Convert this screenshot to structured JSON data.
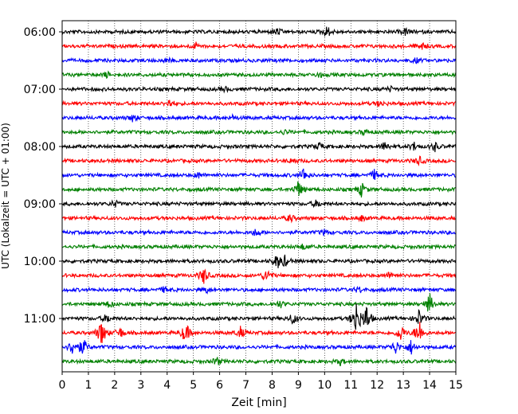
{
  "chart_data": {
    "type": "line",
    "title": "",
    "xlabel": "Zeit  [min]",
    "ylabel": "UTC (Lokalzeit = UTC + 01:00)",
    "xlim": [
      0,
      15
    ],
    "x_ticks": [
      "0",
      "1",
      "2",
      "3",
      "4",
      "5",
      "6",
      "7",
      "8",
      "9",
      "10",
      "11",
      "12",
      "13",
      "14",
      "15"
    ],
    "y_tick_labels": [
      "06:00",
      "07:00",
      "08:00",
      "09:00",
      "10:00",
      "11:00"
    ],
    "grid": "vertical-dotted",
    "trace_colors": [
      "#000000",
      "#ff0000",
      "#0000ff",
      "#008000"
    ],
    "traces": [
      {
        "row": 0,
        "color_index": 0,
        "events": [
          [
            8.2,
            0.5
          ],
          [
            10.1,
            0.8
          ],
          [
            13.1,
            0.5
          ]
        ]
      },
      {
        "row": 1,
        "color_index": 1,
        "events": [
          [
            5.1,
            0.4
          ],
          [
            13.7,
            0.5
          ]
        ]
      },
      {
        "row": 2,
        "color_index": 2,
        "events": [
          [
            4.0,
            0.3
          ],
          [
            13.5,
            0.3
          ]
        ]
      },
      {
        "row": 3,
        "color_index": 3,
        "events": [
          [
            1.7,
            0.4
          ],
          [
            9.8,
            0.3
          ]
        ]
      },
      {
        "row": 4,
        "color_index": 0,
        "events": [
          [
            6.2,
            0.3
          ],
          [
            12.5,
            0.3
          ]
        ]
      },
      {
        "row": 5,
        "color_index": 1,
        "events": [
          [
            4.1,
            0.6
          ],
          [
            12.1,
            0.4
          ]
        ]
      },
      {
        "row": 6,
        "color_index": 2,
        "events": [
          [
            2.7,
            0.5
          ],
          [
            6.5,
            0.3
          ]
        ]
      },
      {
        "row": 7,
        "color_index": 3,
        "events": [
          [
            8.5,
            0.3
          ],
          [
            11.5,
            0.3
          ]
        ]
      },
      {
        "row": 8,
        "color_index": 0,
        "events": [
          [
            9.8,
            0.5
          ],
          [
            12.3,
            0.7
          ],
          [
            13.4,
            0.6
          ],
          [
            14.2,
            0.6
          ]
        ]
      },
      {
        "row": 9,
        "color_index": 1,
        "events": [
          [
            8.8,
            0.4
          ],
          [
            13.6,
            0.6
          ]
        ]
      },
      {
        "row": 10,
        "color_index": 2,
        "events": [
          [
            5.2,
            0.4
          ],
          [
            9.2,
            1.0
          ],
          [
            11.9,
            0.7
          ]
        ]
      },
      {
        "row": 11,
        "color_index": 3,
        "events": [
          [
            9.0,
            1.2
          ],
          [
            11.4,
            1.0
          ]
        ]
      },
      {
        "row": 12,
        "color_index": 0,
        "events": [
          [
            2.0,
            0.5
          ],
          [
            9.7,
            0.5
          ]
        ]
      },
      {
        "row": 13,
        "color_index": 1,
        "events": [
          [
            8.7,
            0.5
          ],
          [
            11.4,
            0.4
          ]
        ]
      },
      {
        "row": 14,
        "color_index": 2,
        "events": [
          [
            7.4,
            0.6
          ],
          [
            10.0,
            0.4
          ]
        ]
      },
      {
        "row": 15,
        "color_index": 3,
        "events": [
          [
            9.2,
            0.4
          ]
        ]
      },
      {
        "row": 16,
        "color_index": 0,
        "events": [
          [
            8.2,
            1.0
          ],
          [
            8.5,
            0.7
          ]
        ]
      },
      {
        "row": 17,
        "color_index": 1,
        "events": [
          [
            5.4,
            1.2
          ],
          [
            7.8,
            1.0
          ],
          [
            12.5,
            0.5
          ]
        ]
      },
      {
        "row": 18,
        "color_index": 2,
        "events": [
          [
            3.9,
            0.4
          ],
          [
            5.5,
            0.4
          ],
          [
            11.3,
            0.4
          ]
        ]
      },
      {
        "row": 19,
        "color_index": 3,
        "events": [
          [
            1.8,
            0.5
          ],
          [
            8.3,
            0.5
          ],
          [
            14.0,
            1.5
          ]
        ]
      },
      {
        "row": 20,
        "color_index": 0,
        "events": [
          [
            1.7,
            0.6
          ],
          [
            8.8,
            0.8
          ],
          [
            11.2,
            2.5
          ],
          [
            11.6,
            2.0
          ],
          [
            13.6,
            1.2
          ]
        ]
      },
      {
        "row": 21,
        "color_index": 1,
        "events": [
          [
            1.5,
            2.0
          ],
          [
            2.2,
            0.8
          ],
          [
            4.7,
            1.5
          ],
          [
            6.8,
            0.8
          ],
          [
            12.9,
            1.2
          ],
          [
            13.6,
            2.0
          ]
        ]
      },
      {
        "row": 22,
        "color_index": 2,
        "events": [
          [
            0.4,
            1.2
          ],
          [
            0.8,
            1.2
          ],
          [
            12.7,
            1.0
          ],
          [
            13.3,
            1.0
          ]
        ]
      },
      {
        "row": 23,
        "color_index": 3,
        "events": [
          [
            5.9,
            0.6
          ],
          [
            10.6,
            0.4
          ]
        ]
      }
    ]
  }
}
